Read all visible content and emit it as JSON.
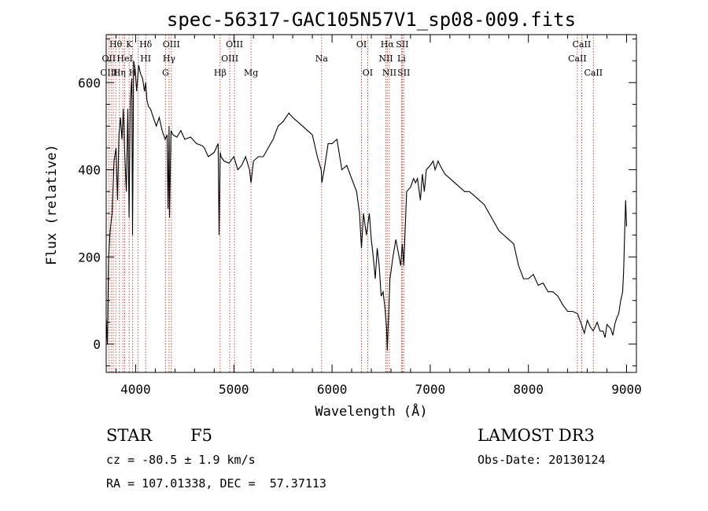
{
  "chart_data": {
    "type": "line",
    "title": "spec-56317-GAC105N57V1_sp08-009.fits",
    "xlabel": "Wavelength (Å)",
    "ylabel": "Flux (relative)",
    "xlim": [
      3700,
      9100
    ],
    "ylim": [
      -65,
      710
    ],
    "x_ticks": [
      4000,
      5000,
      6000,
      7000,
      8000,
      9000
    ],
    "y_ticks": [
      0,
      200,
      400,
      600
    ],
    "grid": false,
    "series": [
      {
        "x": [
          3700,
          3712,
          3725,
          3740,
          3760,
          3780,
          3800,
          3815,
          3830,
          3845,
          3860,
          3875,
          3890,
          3905,
          3920,
          3933,
          3945,
          3960,
          3968,
          3980,
          3995,
          4010,
          4030,
          4050,
          4070,
          4090,
          4102,
          4115,
          4130,
          4150,
          4180,
          4210,
          4240,
          4270,
          4300,
          4320,
          4330,
          4340,
          4345,
          4360,
          4380,
          4420,
          4460,
          4500,
          4560,
          4620,
          4680,
          4700,
          4740,
          4800,
          4840,
          4850,
          4861,
          4870,
          4900,
          4950,
          5000,
          5040,
          5080,
          5120,
          5160,
          5175,
          5200,
          5250,
          5300,
          5350,
          5400,
          5450,
          5500,
          5530,
          5560,
          5600,
          5650,
          5700,
          5750,
          5800,
          5850,
          5890,
          5896,
          5920,
          5960,
          6000,
          6050,
          6100,
          6150,
          6200,
          6250,
          6280,
          6300,
          6320,
          6350,
          6380,
          6400,
          6420,
          6440,
          6460,
          6480,
          6500,
          6520,
          6540,
          6555,
          6563,
          6570,
          6590,
          6620,
          6650,
          6700,
          6716,
          6731,
          6760,
          6800,
          6830,
          6850,
          6870,
          6900,
          6920,
          6940,
          6960,
          7000,
          7030,
          7050,
          7080,
          7100,
          7150,
          7200,
          7250,
          7300,
          7350,
          7400,
          7450,
          7500,
          7550,
          7600,
          7650,
          7700,
          7750,
          7800,
          7850,
          7900,
          7950,
          8000,
          8050,
          8100,
          8150,
          8200,
          8250,
          8300,
          8350,
          8400,
          8450,
          8500,
          8540,
          8570,
          8600,
          8630,
          8660,
          8700,
          8730,
          8760,
          8780,
          8800,
          8820,
          8840,
          8860,
          8880,
          8900,
          8920,
          8940,
          8960,
          8970,
          8980,
          8990,
          9000
        ],
        "y": [
          60,
          0,
          200,
          260,
          300,
          420,
          450,
          330,
          480,
          520,
          470,
          540,
          430,
          350,
          540,
          290,
          560,
          610,
          250,
          650,
          630,
          580,
          640,
          620,
          610,
          580,
          600,
          560,
          545,
          540,
          520,
          500,
          520,
          490,
          470,
          480,
          310,
          500,
          290,
          490,
          480,
          475,
          490,
          470,
          475,
          460,
          455,
          450,
          430,
          440,
          460,
          250,
          440,
          430,
          420,
          415,
          430,
          400,
          410,
          430,
          400,
          370,
          420,
          430,
          430,
          450,
          470,
          500,
          510,
          520,
          530,
          520,
          510,
          500,
          490,
          480,
          430,
          400,
          370,
          400,
          460,
          460,
          470,
          400,
          410,
          380,
          350,
          300,
          220,
          300,
          250,
          300,
          240,
          200,
          150,
          220,
          180,
          110,
          120,
          80,
          40,
          -15,
          30,
          150,
          200,
          240,
          180,
          230,
          180,
          350,
          360,
          380,
          370,
          380,
          330,
          390,
          350,
          400,
          410,
          420,
          400,
          420,
          410,
          390,
          380,
          370,
          360,
          350,
          350,
          340,
          330,
          320,
          300,
          280,
          260,
          250,
          240,
          230,
          180,
          150,
          150,
          160,
          135,
          140,
          120,
          120,
          110,
          90,
          75,
          75,
          70,
          45,
          25,
          55,
          40,
          30,
          50,
          30,
          30,
          15,
          45,
          40,
          35,
          20,
          45,
          60,
          70,
          100,
          120,
          170,
          250,
          330,
          270
        ]
      }
    ],
    "line_markers": [
      {
        "label": "Hθ",
        "x": 3797,
        "row": 0
      },
      {
        "label": "OII",
        "x": 3727,
        "row": 1
      },
      {
        "label": "OIII",
        "x": 3727,
        "row": 2
      },
      {
        "label": "Hη",
        "x": 3835,
        "row": 2
      },
      {
        "label": "HeI",
        "x": 3889,
        "row": 1
      },
      {
        "label": "K",
        "x": 3934,
        "row": 0
      },
      {
        "label": "H",
        "x": 3968,
        "row": 2
      },
      {
        "label": "Hδ",
        "x": 4102,
        "row": 0
      },
      {
        "label": "HI",
        "x": 4102,
        "row": 1
      },
      {
        "label": "OIII",
        "x": 4363,
        "row": 0
      },
      {
        "label": "Hγ",
        "x": 4340,
        "row": 1
      },
      {
        "label": "G",
        "x": 4304,
        "row": 2
      },
      {
        "label": "Hβ",
        "x": 4861,
        "row": 2
      },
      {
        "label": "OIII",
        "x": 5007,
        "row": 0
      },
      {
        "label": "OIII",
        "x": 4959,
        "row": 1
      },
      {
        "label": "Mg",
        "x": 5175,
        "row": 2
      },
      {
        "label": "Na",
        "x": 5894,
        "row": 1
      },
      {
        "label": "OI",
        "x": 6300,
        "row": 0
      },
      {
        "label": "OI",
        "x": 6363,
        "row": 2
      },
      {
        "label": "Hα",
        "x": 6563,
        "row": 0
      },
      {
        "label": "NII",
        "x": 6548,
        "row": 1
      },
      {
        "label": "NII",
        "x": 6584,
        "row": 2
      },
      {
        "label": "SII",
        "x": 6716,
        "row": 0
      },
      {
        "label": "Li",
        "x": 6708,
        "row": 1
      },
      {
        "label": "SII",
        "x": 6731,
        "row": 2
      },
      {
        "label": "CaII",
        "x": 8542,
        "row": 0
      },
      {
        "label": "CaII",
        "x": 8498,
        "row": 1
      },
      {
        "label": "CaII",
        "x": 8662,
        "row": 2
      }
    ],
    "line_positions": [
      3727,
      3750,
      3771,
      3797,
      3835,
      3869,
      3889,
      3934,
      3968,
      4026,
      4102,
      4304,
      4340,
      4363,
      4861,
      4959,
      5007,
      5175,
      5894,
      6300,
      6363,
      6548,
      6563,
      6584,
      6708,
      6716,
      6731,
      8498,
      8542,
      8662
    ]
  },
  "info": {
    "object_type": "STAR",
    "subclass": "F5",
    "survey": "LAMOST DR3",
    "redshift_line": "cz = -80.5 ± 1.9 km/s",
    "obs_date_line": "Obs-Date: 20130124",
    "coords_line": "RA = 107.01338, DEC =  57.37113"
  }
}
